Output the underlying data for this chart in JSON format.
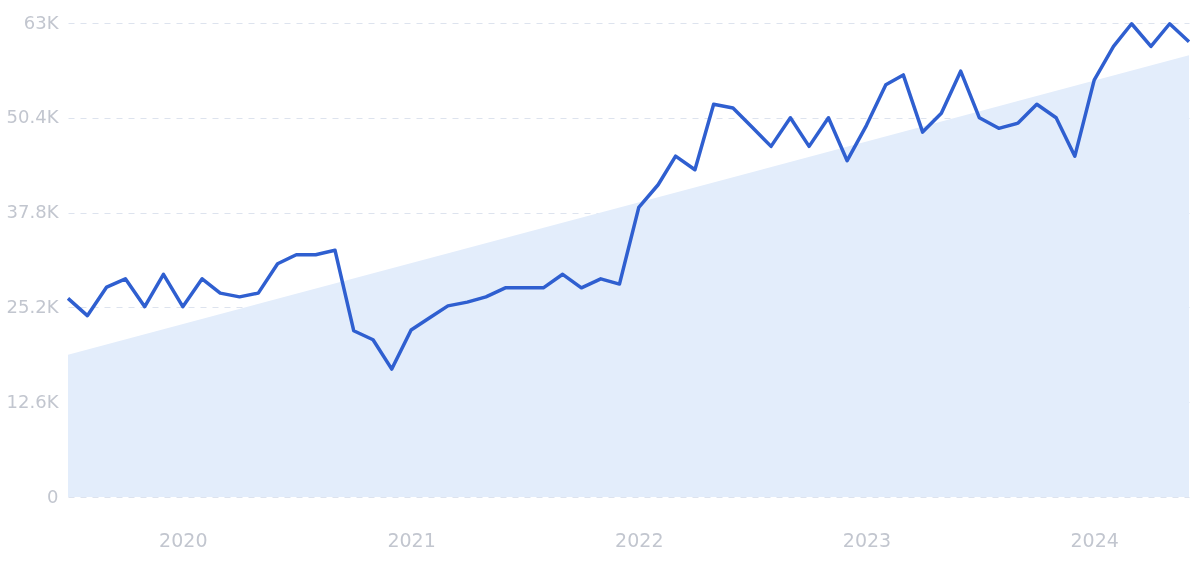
{
  "chart_data": {
    "type": "line",
    "xlim": [
      "2019-07",
      "2024-06"
    ],
    "xticks": [
      "2020",
      "2021",
      "2022",
      "2023",
      "2024"
    ],
    "ylim": [
      0,
      63000
    ],
    "yticks": [
      0,
      {
        "value": 12600,
        "label": "12.6K"
      },
      {
        "value": 25200,
        "label": "25.2K"
      },
      {
        "value": 37800,
        "label": "37.8K"
      },
      {
        "value": 50400,
        "label": "50.4K"
      },
      {
        "value": 63000,
        "label": "63K"
      }
    ],
    "grid": "y",
    "marker": "none",
    "line_style": "solid",
    "x": [
      "2019-07",
      "2019-08",
      "2019-09",
      "2019-10",
      "2019-11",
      "2019-12",
      "2020-01",
      "2020-02",
      "2020-03",
      "2020-04",
      "2020-05",
      "2020-06",
      "2020-07",
      "2020-08",
      "2020-09",
      "2020-10",
      "2020-11",
      "2020-12",
      "2021-01",
      "2021-02",
      "2021-03",
      "2021-04",
      "2021-05",
      "2021-06",
      "2021-07",
      "2021-08",
      "2021-09",
      "2021-10",
      "2021-11",
      "2021-12",
      "2022-01",
      "2022-02",
      "2022-03",
      "2022-04",
      "2022-05",
      "2022-06",
      "2022-07",
      "2022-08",
      "2022-09",
      "2022-10",
      "2022-11",
      "2022-12",
      "2023-01",
      "2023-02",
      "2023-03",
      "2023-04",
      "2023-05",
      "2023-06",
      "2023-07",
      "2023-08",
      "2023-09",
      "2023-10",
      "2023-11",
      "2023-12",
      "2024-01",
      "2024-02",
      "2024-03",
      "2024-04",
      "2024-05",
      "2024-06"
    ],
    "series": [
      {
        "type": "area",
        "color": "#e3edfb",
        "x": [
          "2019-07",
          "2024-06"
        ],
        "values": [
          18900,
          58700
        ]
      },
      {
        "color": "#2f5fd0",
        "values": [
          26400,
          24100,
          27900,
          29000,
          25300,
          29600,
          25300,
          29000,
          27100,
          26600,
          27100,
          31000,
          32200,
          32200,
          32800,
          22100,
          20900,
          17000,
          22200,
          23900,
          25400,
          25900,
          26600,
          27800,
          27800,
          27800,
          29600,
          27800,
          29000,
          28300,
          38500,
          41500,
          45300,
          43500,
          52200,
          51700,
          49200,
          46600,
          50400,
          46600,
          50400,
          44700,
          49400,
          54800,
          56100,
          48500,
          51000,
          56600,
          50400,
          49000,
          49700,
          52200,
          50400,
          45300,
          55400,
          59900,
          62900,
          59900,
          62900,
          60500
        ]
      }
    ]
  }
}
